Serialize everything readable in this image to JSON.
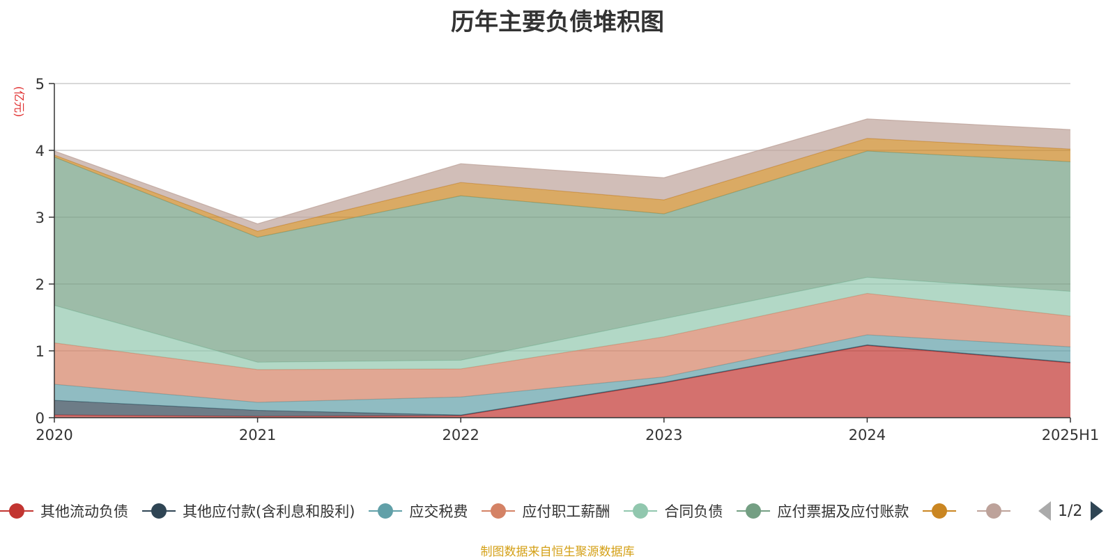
{
  "chart_data": {
    "type": "area",
    "stacked": true,
    "title": "历年主要负债堆积图",
    "ylabel": "(亿元)",
    "xlabel": "",
    "x": [
      "2020",
      "2021",
      "2022",
      "2023",
      "2024",
      "2025H1"
    ],
    "ylim": [
      0,
      5
    ],
    "yticks": [
      "0",
      "1",
      "2",
      "3",
      "4",
      "5"
    ],
    "grid": true,
    "legend_position": "bottom",
    "series": [
      {
        "name": "其他流动负债",
        "color": "#c23531",
        "values": [
          0.04,
          0.02,
          0.03,
          0.52,
          1.08,
          0.82
        ]
      },
      {
        "name": "其他应付款(含利息和股利)",
        "color": "#2f4554",
        "values": [
          0.22,
          0.09,
          0.01,
          0.01,
          0.01,
          0.01
        ]
      },
      {
        "name": "应交税费",
        "color": "#61a0a8",
        "values": [
          0.24,
          0.12,
          0.27,
          0.08,
          0.15,
          0.23
        ]
      },
      {
        "name": "应付职工薪酬",
        "color": "#d48265",
        "values": [
          0.62,
          0.49,
          0.42,
          0.6,
          0.62,
          0.46
        ]
      },
      {
        "name": "合同负债",
        "color": "#91c7ae",
        "values": [
          0.56,
          0.11,
          0.13,
          0.27,
          0.24,
          0.37
        ]
      },
      {
        "name": "应付票据及应付账款",
        "color": "#749f83",
        "values": [
          2.22,
          1.87,
          2.46,
          1.57,
          1.89,
          1.94
        ]
      },
      {
        "name": "",
        "color": "#ca8622",
        "values": [
          0.03,
          0.09,
          0.2,
          0.21,
          0.19,
          0.19
        ]
      },
      {
        "name": "",
        "color": "#bda29a",
        "values": [
          0.06,
          0.11,
          0.28,
          0.33,
          0.29,
          0.29
        ]
      }
    ]
  },
  "legend": {
    "pager_text": "1/2"
  },
  "source_note": "制图数据来自恒生聚源数据库"
}
